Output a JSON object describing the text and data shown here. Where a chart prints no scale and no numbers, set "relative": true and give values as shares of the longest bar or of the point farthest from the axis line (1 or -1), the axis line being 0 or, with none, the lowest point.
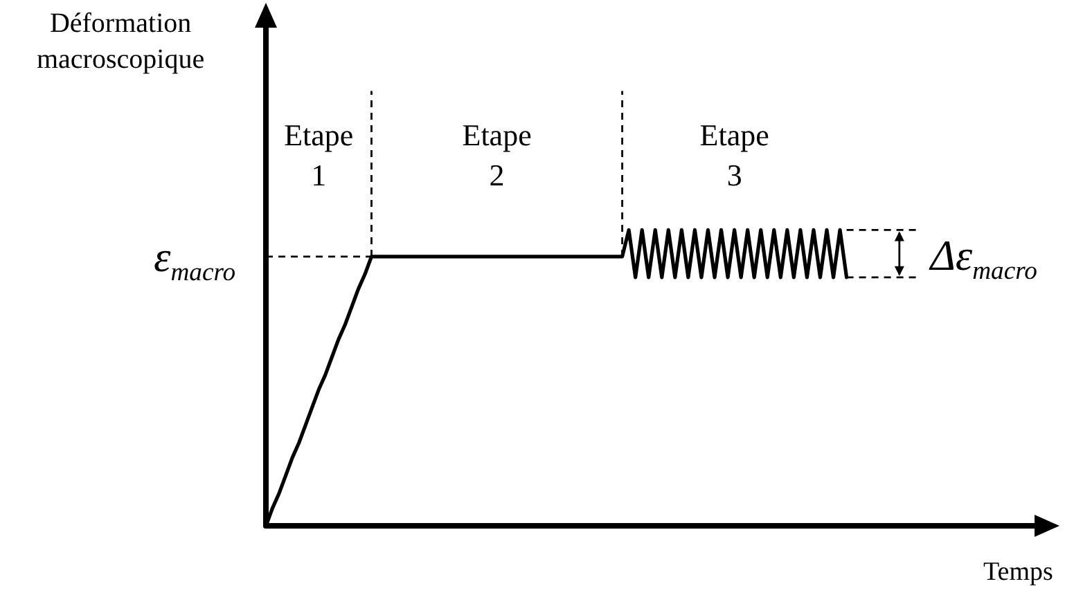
{
  "chart_data": {
    "type": "line",
    "relative": true,
    "xlabel": "Temps",
    "categories": [
      null,
      null,
      null,
      null,
      null,
      null,
      null,
      null,
      null,
      null,
      null,
      null,
      null,
      null,
      null,
      null,
      null,
      null,
      null,
      null,
      null,
      null,
      null,
      null,
      null,
      null,
      null,
      null,
      null,
      null,
      null,
      null,
      null,
      null,
      null,
      null,
      null,
      null,
      null,
      null,
      null,
      null,
      null,
      null,
      null,
      null,
      null,
      null,
      null,
      null,
      null,
      null,
      null,
      null,
      null,
      null,
      null,
      null,
      null,
      null,
      null,
      null,
      null,
      null,
      null,
      null,
      null,
      null,
      null,
      null,
      null,
      null,
      null,
      null,
      null,
      null,
      null,
      null,
      null,
      null,
      null,
      null,
      null,
      null,
      null,
      null,
      null,
      null,
      null,
      null,
      null,
      null,
      null,
      null,
      null,
      null,
      null,
      null,
      null,
      null,
      null,
      null,
      null,
      null,
      null,
      null,
      null,
      null,
      null,
      null,
      null,
      null,
      null,
      null,
      null,
      null,
      null,
      null,
      null,
      null
    ],
    "values": [
      0,
      0.06,
      0.11,
      0.17,
      0.23,
      0.28,
      0.34,
      0.4,
      0.46,
      0.51,
      0.57,
      0.63,
      0.68,
      0.74,
      0.8,
      0.85,
      0.91,
      0.91,
      0.91,
      0.91,
      0.91,
      0.91,
      0.91,
      0.91,
      0.91,
      0.91,
      0.91,
      0.91,
      0.91,
      0.91,
      0.91,
      0.91,
      0.91,
      0.91,
      0.91,
      0.91,
      0.91,
      0.91,
      0.91,
      0.91,
      0.91,
      0.91,
      0.91,
      0.91,
      0.91,
      0.91,
      0.91,
      0.91,
      0.91,
      0.91,
      0.91,
      0.91,
      0.91,
      0.91,
      0.91,
      1,
      0.84,
      1,
      0.84,
      1,
      0.84,
      1,
      0.84,
      1,
      0.84,
      1,
      0.84,
      1,
      0.84,
      1,
      0.84,
      1,
      0.84,
      1,
      0.84,
      1,
      0.84,
      1,
      0.84,
      1,
      0.84,
      1,
      0.84,
      1,
      0.84,
      1,
      0.84,
      1,
      0.84,
      null,
      null,
      null,
      null,
      null,
      null,
      null,
      null,
      null,
      null,
      null,
      null,
      null,
      null,
      null,
      null,
      null,
      null,
      null,
      null,
      null,
      null,
      null,
      null,
      null,
      null,
      null,
      null,
      null,
      null,
      null
    ],
    "color": "#000000",
    "line_style": "solid",
    "ref_lines": [
      {
        "axis": "y",
        "value": 0.91,
        "label": "ε$_{macro}$",
        "line_style": "dashed"
      },
      {
        "axis": "y",
        "value": 1,
        "line_style": "dashed"
      },
      {
        "axis": "y",
        "value": 0.84,
        "line_style": "dashed"
      }
    ],
    "annotations": [
      "Déformation macroscopique",
      "Etape 1",
      "Etape 2",
      "Etape 3",
      "Δε$_{macro}$"
    ]
  }
}
